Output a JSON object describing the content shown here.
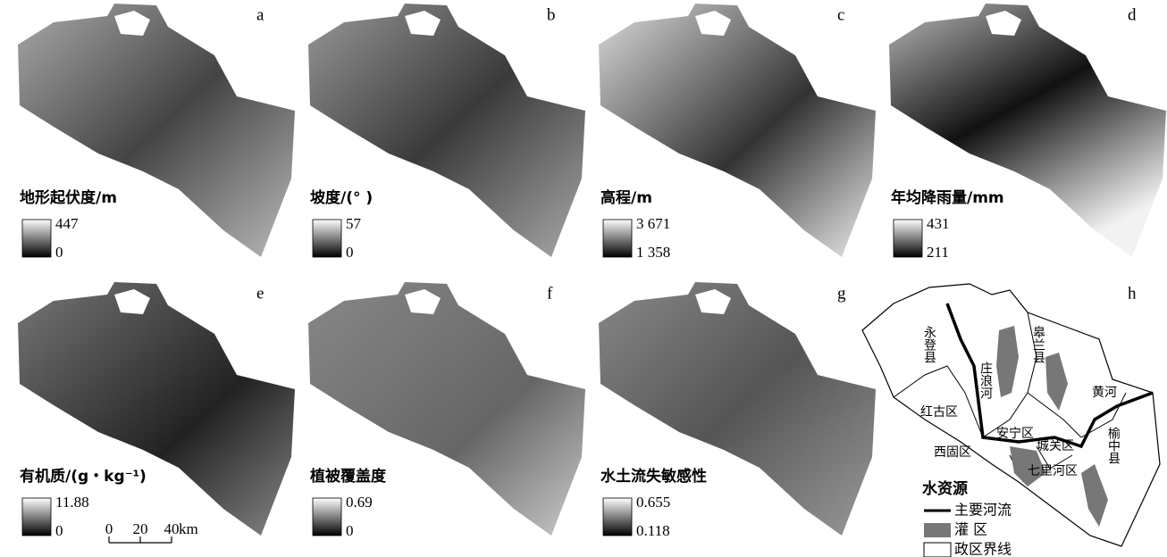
{
  "panels": [
    {
      "letter": "a",
      "title": "地形起伏度/m",
      "legend_max": "447",
      "legend_min": "0"
    },
    {
      "letter": "b",
      "title": "坡度/(° )",
      "legend_max": "57",
      "legend_min": "0"
    },
    {
      "letter": "c",
      "title": "高程/m",
      "legend_max": "3 671",
      "legend_min": "1 358"
    },
    {
      "letter": "d",
      "title": "年均降雨量/mm",
      "legend_max": "431",
      "legend_min": "211"
    },
    {
      "letter": "e",
      "title": "有机质/(g・kg⁻¹)",
      "legend_max": "11.88",
      "legend_min": "0"
    },
    {
      "letter": "f",
      "title": "植被覆盖度",
      "legend_max": "0.69",
      "legend_min": "0"
    },
    {
      "letter": "g",
      "title": "水土流失敏感性",
      "legend_max": "0.655",
      "legend_min": "0.118"
    }
  ],
  "scale_bar": {
    "ticks": [
      "0",
      "20",
      "40"
    ],
    "unit": "km"
  },
  "water_map": {
    "letter": "h",
    "places": [
      "永登县",
      "庄浪河",
      "皋兰县",
      "黄河",
      "红古区",
      "西固区",
      "安宁区",
      "城关区",
      "七里河区",
      "榆中县"
    ],
    "legend": {
      "title": "水资源",
      "items": [
        "主要河流",
        "灌 区",
        "政区界线"
      ]
    }
  }
}
